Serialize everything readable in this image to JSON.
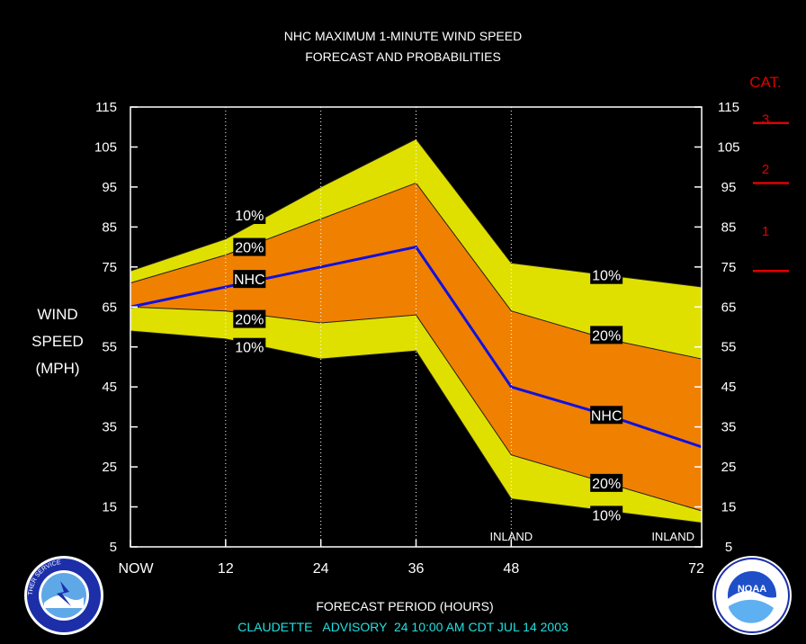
{
  "chart_data": {
    "type": "area",
    "title": [
      "NHC MAXIMUM 1-MINUTE WIND SPEED",
      "FORECAST AND PROBABILITIES"
    ],
    "ylabel": [
      "WIND",
      "SPEED",
      "(MPH)"
    ],
    "xlabel": "FORECAST PERIOD (HOURS)",
    "footer": "CLAUDETTE   ADVISORY  24 10:00 AM CDT JUL 14 2003",
    "xlim": [
      0,
      72
    ],
    "ylim": [
      5,
      115
    ],
    "x_ticks": [
      0,
      12,
      24,
      36,
      48,
      72
    ],
    "x_tick_labels": [
      "NOW",
      "12",
      "24",
      "36",
      "48",
      "72"
    ],
    "y_ticks": [
      5,
      15,
      25,
      35,
      45,
      55,
      65,
      75,
      85,
      95,
      105,
      115
    ],
    "vertical_gridlines_x": [
      12,
      24,
      36,
      48
    ],
    "x": [
      0,
      12,
      24,
      36,
      48,
      60,
      72
    ],
    "series": [
      {
        "name": "10%",
        "band": "upper",
        "values": [
          74,
          82,
          95,
          107,
          76,
          73,
          70
        ]
      },
      {
        "name": "20%",
        "band": "upper",
        "values": [
          71,
          78,
          87,
          96,
          64,
          57,
          52
        ]
      },
      {
        "name": "NHC",
        "band": "center",
        "values": [
          65,
          70,
          75,
          80,
          45,
          38,
          30
        ]
      },
      {
        "name": "20%",
        "band": "lower",
        "values": [
          65,
          64,
          61,
          63,
          28,
          21,
          14
        ]
      },
      {
        "name": "10%",
        "band": "lower",
        "values": [
          59,
          57,
          52,
          54,
          17,
          14,
          11
        ]
      }
    ],
    "series_labels": [
      {
        "text": "10%",
        "x": 15,
        "y": 88
      },
      {
        "text": "20%",
        "x": 15,
        "y": 80
      },
      {
        "text": "NHC",
        "x": 15,
        "y": 72
      },
      {
        "text": "20%",
        "x": 15,
        "y": 62
      },
      {
        "text": "10%",
        "x": 15,
        "y": 55
      },
      {
        "text": "10%",
        "x": 60,
        "y": 73
      },
      {
        "text": "20%",
        "x": 60,
        "y": 58
      },
      {
        "text": "NHC",
        "x": 60,
        "y": 38
      },
      {
        "text": "20%",
        "x": 60,
        "y": 21
      },
      {
        "text": "10%",
        "x": 60,
        "y": 13
      }
    ],
    "annotations": [
      {
        "text": "INLAND",
        "x": 48,
        "y": 7
      },
      {
        "text": "INLAND",
        "x": 72,
        "y": 7
      }
    ],
    "category_scale": {
      "title": "CAT.",
      "labels": [
        {
          "text": "3",
          "y": 112
        },
        {
          "text": "2",
          "y": 99.5
        },
        {
          "text": "1",
          "y": 84
        }
      ],
      "thresholds": [
        111,
        96,
        74
      ]
    },
    "colors": {
      "background": "#000000",
      "band10": "#e0e000",
      "band20": "#f08000",
      "nhc_line": "#1010e0",
      "category": "#e00000",
      "footer": "#20e0e0",
      "text": "#ffffff"
    }
  },
  "logos": {
    "left": {
      "icon": "nws-logo",
      "text": "NATIONAL WEATHER SERVICE"
    },
    "right": {
      "icon": "noaa-logo",
      "text": "NOAA"
    }
  }
}
